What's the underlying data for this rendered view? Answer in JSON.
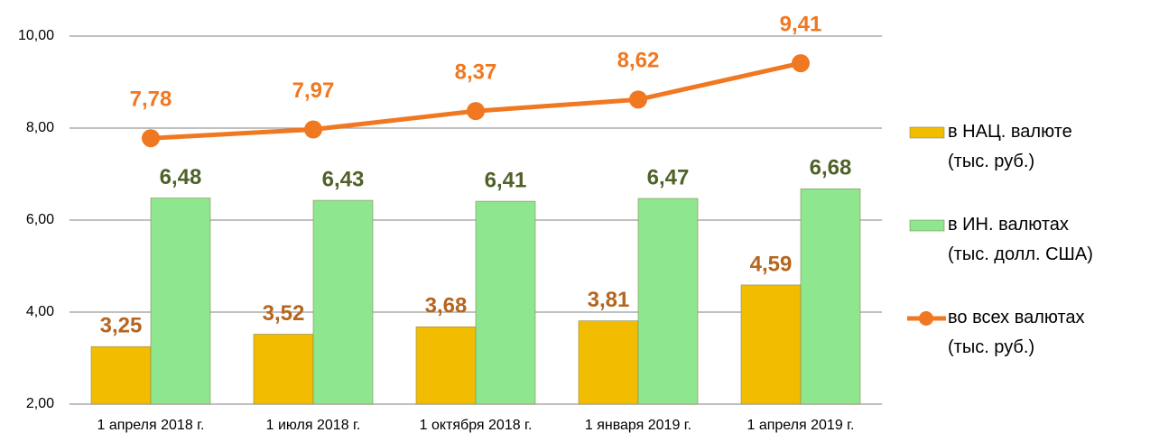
{
  "chart_data": {
    "type": "bar",
    "categories": [
      "1 апреля 2018 г.",
      "1 июля 2018 г.",
      "1 октября 2018 г.",
      "1 января 2019 г.",
      "1 апреля 2019 г."
    ],
    "series": [
      {
        "name": "в НАЦ. валюте\n(тыс. руб.)",
        "color": "#f2bd00",
        "label_color": "#b5651d",
        "values": [
          3.25,
          3.52,
          3.68,
          3.81,
          4.59
        ],
        "value_labels": [
          "3,25",
          "3,52",
          "3,68",
          "3,81",
          "4,59"
        ]
      },
      {
        "name": "в ИН. валютах\n(тыс. долл. США)",
        "color": "#8ee68e",
        "label_color": "#4f6228",
        "values": [
          6.48,
          6.43,
          6.41,
          6.47,
          6.68
        ],
        "value_labels": [
          "6,48",
          "6,43",
          "6,41",
          "6,47",
          "6,68"
        ]
      },
      {
        "name": "во всех валютах\n(тыс. руб.)",
        "type": "line",
        "color": "#f07820",
        "label_color": "#f07820",
        "values": [
          7.78,
          7.97,
          8.37,
          8.62,
          9.41
        ],
        "value_labels": [
          "7,78",
          "7,97",
          "8,37",
          "8,62",
          "9,41"
        ]
      }
    ],
    "ylim": [
      2,
      10
    ],
    "yticks": [
      {
        "value": 2,
        "label": "2,00"
      },
      {
        "value": 4,
        "label": "4,00"
      },
      {
        "value": 6,
        "label": "6,00"
      },
      {
        "value": 8,
        "label": "8,00"
      },
      {
        "value": 10,
        "label": "10,00"
      }
    ],
    "grid": true,
    "legend": "right"
  }
}
